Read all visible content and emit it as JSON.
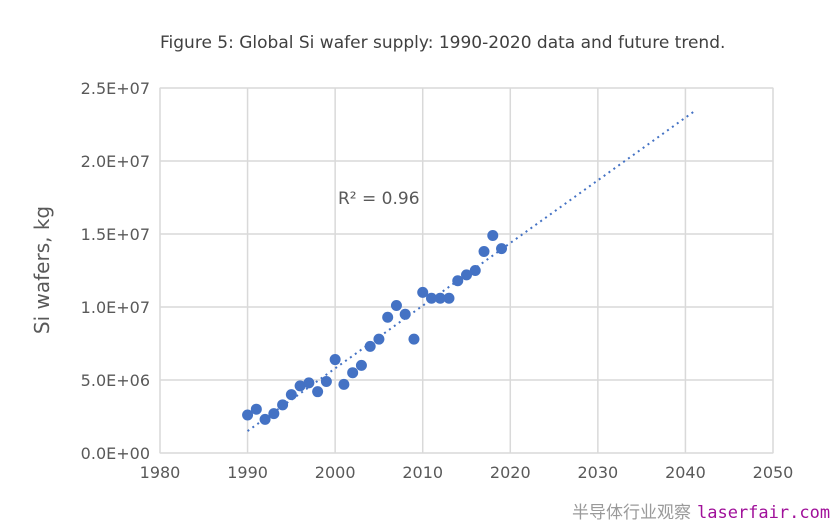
{
  "chart_data": {
    "type": "scatter",
    "title": "Figure 5: Global Si wafer supply: 1990-2020 data and future trend.",
    "xlabel": "",
    "ylabel": "Si wafers, kg",
    "xlim": [
      1980,
      2050
    ],
    "ylim": [
      0,
      25000000
    ],
    "x_ticks": [
      "1980",
      "1990",
      "2000",
      "2010",
      "2020",
      "2030",
      "2040",
      "2050"
    ],
    "y_ticks": [
      "0.0E+00",
      "5.0E+06",
      "1.0E+07",
      "1.5E+07",
      "2.0E+07",
      "2.5E+07"
    ],
    "grid": true,
    "legend": "none",
    "x": [
      1990,
      1991,
      1992,
      1993,
      1994,
      1995,
      1996,
      1997,
      1998,
      1999,
      2000,
      2001,
      2002,
      2003,
      2004,
      2005,
      2006,
      2007,
      2008,
      2009,
      2010,
      2011,
      2012,
      2013,
      2014,
      2015,
      2016,
      2017,
      2018,
      2019
    ],
    "y": [
      2600000,
      3000000,
      2300000,
      2700000,
      3300000,
      4000000,
      4600000,
      4800000,
      4200000,
      4900000,
      6400000,
      4700000,
      5500000,
      6000000,
      7300000,
      7800000,
      9300000,
      10100000,
      9500000,
      7800000,
      11000000,
      10600000,
      10600000,
      10600000,
      11800000,
      12200000,
      12500000,
      13800000,
      14900000,
      14000000
    ],
    "trendline": {
      "type": "linear",
      "x_range": [
        1990,
        2041
      ],
      "y_range": [
        1500000,
        23400000
      ],
      "style": "dotted",
      "annotation": "R² = 0.96"
    },
    "colors": {
      "points": "#4472c4",
      "trendline": "#4472c4",
      "grid": "#d9d9d9"
    }
  },
  "watermark": {
    "text_cn": "半导体行业观察",
    "text_url": "laserfair.com"
  }
}
